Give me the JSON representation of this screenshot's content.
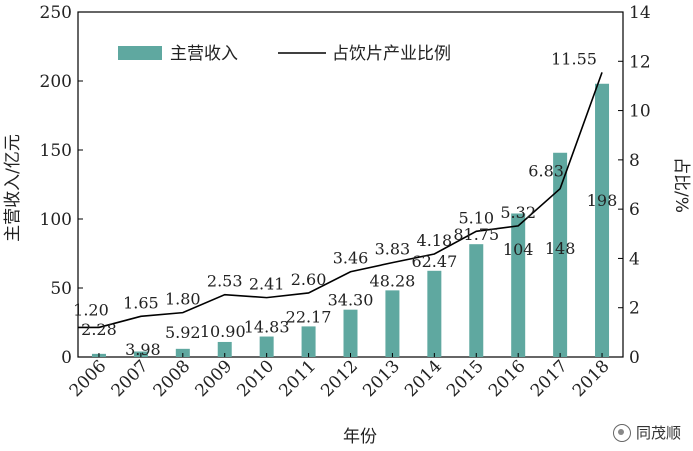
{
  "chart_data": {
    "type": "bar+line",
    "categories": [
      "2006",
      "2007",
      "2008",
      "2009",
      "2010",
      "2011",
      "2012",
      "2013",
      "2014",
      "2015",
      "2016",
      "2017",
      "2018"
    ],
    "series": [
      {
        "name": "主营收入",
        "type": "bar",
        "axis": "left",
        "color": "#5fa8a0",
        "values": [
          2.28,
          3.98,
          5.92,
          10.9,
          14.83,
          22.17,
          34.3,
          48.28,
          62.47,
          81.75,
          104,
          148,
          198
        ],
        "labels": [
          "2.28",
          "3.98",
          "5.92",
          "10.90",
          "14.83",
          "22.17",
          "34.30",
          "48.28",
          "62.47",
          "81.75",
          "104",
          "148",
          "198"
        ]
      },
      {
        "name": "占饮片产业比例",
        "type": "line",
        "axis": "right",
        "color": "#000000",
        "values": [
          1.2,
          1.65,
          1.8,
          2.53,
          2.41,
          2.6,
          3.46,
          3.83,
          4.18,
          5.1,
          5.32,
          6.83,
          11.55
        ],
        "labels": [
          "1.20",
          "1.65",
          "1.80",
          "2.53",
          "2.41",
          "2.60",
          "3.46",
          "3.83",
          "4.18",
          "5.10",
          "5.32",
          "6.83",
          "11.55"
        ]
      }
    ],
    "xlabel": "年份",
    "ylabel_left": "主营收入/亿元",
    "ylabel_right": "占比/%",
    "ylim_left": [
      0,
      250
    ],
    "yticks_left": [
      "0",
      "50",
      "100",
      "150",
      "200",
      "250"
    ],
    "ylim_right": [
      0,
      14
    ],
    "yticks_right": [
      "0",
      "2",
      "4",
      "6",
      "8",
      "10",
      "12",
      "14"
    ],
    "grid": false,
    "legend_position": "top-left"
  },
  "watermark": {
    "text": "同茂顺"
  }
}
